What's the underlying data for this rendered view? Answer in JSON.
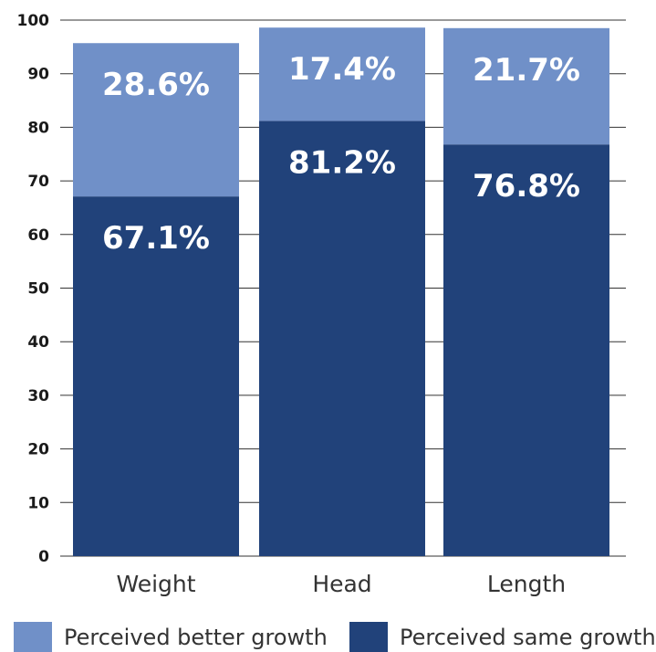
{
  "chart_data": {
    "type": "bar",
    "stacked": true,
    "categories": [
      "Weight",
      "Head",
      "Length"
    ],
    "series": [
      {
        "name": "Perceived same growth",
        "values": [
          67.1,
          81.2,
          76.8
        ],
        "labels": [
          "67.1%",
          "81.2%",
          "76.8%"
        ],
        "color": "#21427a"
      },
      {
        "name": "Perceived better growth",
        "values": [
          28.6,
          17.4,
          21.7
        ],
        "labels": [
          "28.6%",
          "17.4%",
          "21.7%"
        ],
        "color": "#7090c8"
      }
    ],
    "yticks": [
      0,
      10,
      20,
      30,
      40,
      50,
      60,
      70,
      80,
      90,
      100
    ],
    "ylim": [
      0,
      100
    ],
    "grid": true,
    "legend_position": "bottom"
  }
}
